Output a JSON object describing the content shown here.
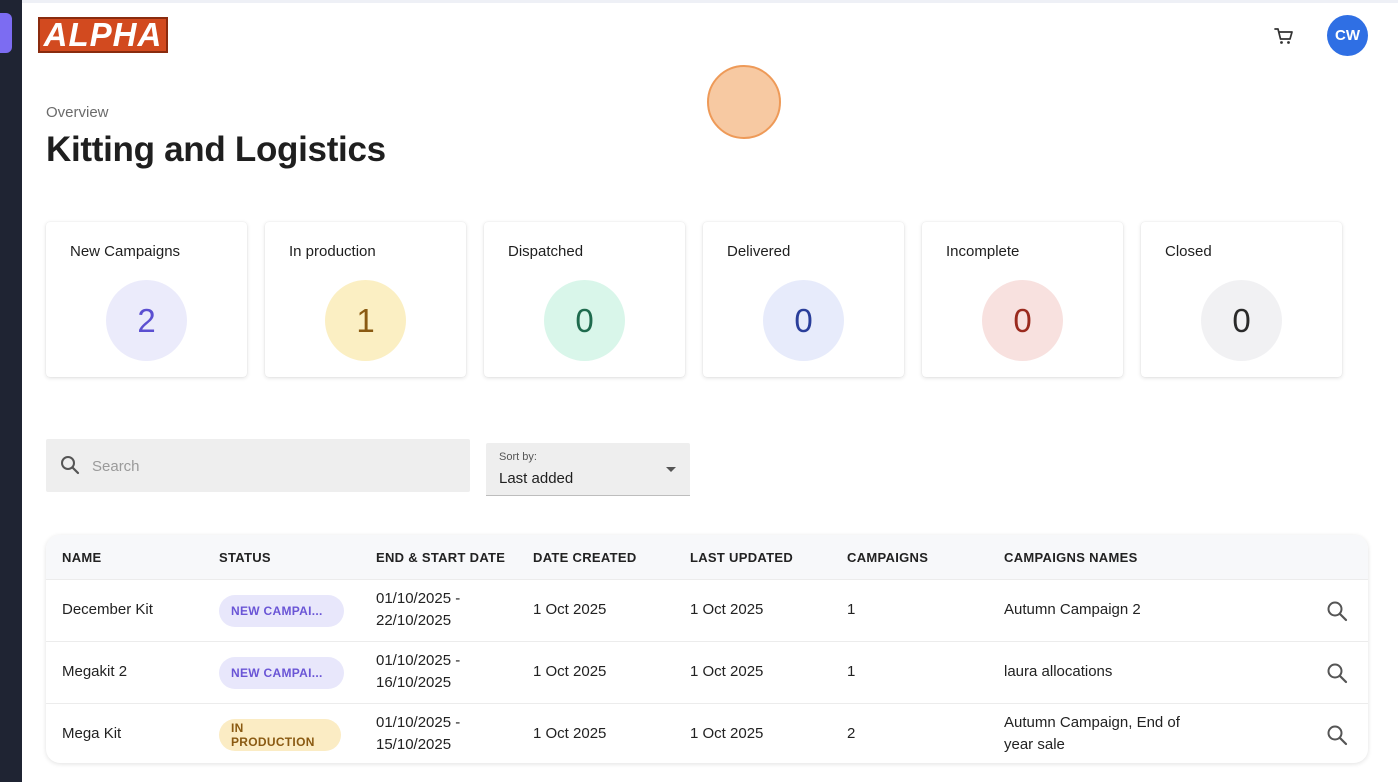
{
  "brand": {
    "logo_text": "ALPHA",
    "logo_color": "#d24a1f"
  },
  "header": {
    "avatar_initials": "CW",
    "cart_icon": "cart-icon"
  },
  "page": {
    "overline": "Overview",
    "title": "Kitting and Logistics"
  },
  "stats": [
    {
      "label": "New Campaigns",
      "value": "2",
      "bg": "#ebebfb",
      "fg": "#5b4fd1"
    },
    {
      "label": "In production",
      "value": "1",
      "bg": "#fbefc3",
      "fg": "#8a5a12"
    },
    {
      "label": "Dispatched",
      "value": "0",
      "bg": "#d9f6ea",
      "fg": "#1f6b4e"
    },
    {
      "label": "Delivered",
      "value": "0",
      "bg": "#e7ebfb",
      "fg": "#2a3e9a"
    },
    {
      "label": "Incomplete",
      "value": "0",
      "bg": "#f8e1df",
      "fg": "#9a2a1e"
    },
    {
      "label": "Closed",
      "value": "0",
      "bg": "#f1f1f3",
      "fg": "#2a2a2a"
    }
  ],
  "search": {
    "placeholder": "Search"
  },
  "sort": {
    "caption": "Sort by:",
    "value": "Last added"
  },
  "table": {
    "columns": [
      "NAME",
      "STATUS",
      "END & START DATE",
      "DATE CREATED",
      "LAST UPDATED",
      "CAMPAIGNS",
      "CAMPAIGNS NAMES"
    ],
    "rows": [
      {
        "name": "December Kit",
        "status": "NEW CAMPAI...",
        "status_kind": "new",
        "dates_1": "01/10/2025 -",
        "dates_2": "22/10/2025",
        "created": "1 Oct 2025",
        "updated": "1 Oct 2025",
        "campaigns": "1",
        "names_1": "Autumn Campaign 2",
        "names_2": ""
      },
      {
        "name": "Megakit 2",
        "status": "NEW CAMPAI...",
        "status_kind": "new",
        "dates_1": "01/10/2025 -",
        "dates_2": "16/10/2025",
        "created": "1 Oct 2025",
        "updated": "1 Oct 2025",
        "campaigns": "1",
        "names_1": "laura allocations",
        "names_2": ""
      },
      {
        "name": "Mega Kit",
        "status": "IN PRODUCTION",
        "status_kind": "prod",
        "dates_1": "01/10/2025 -",
        "dates_2": "15/10/2025",
        "created": "1 Oct 2025",
        "updated": "1 Oct 2025",
        "campaigns": "2",
        "names_1": "Autumn Campaign, End of",
        "names_2": "year sale"
      }
    ]
  }
}
